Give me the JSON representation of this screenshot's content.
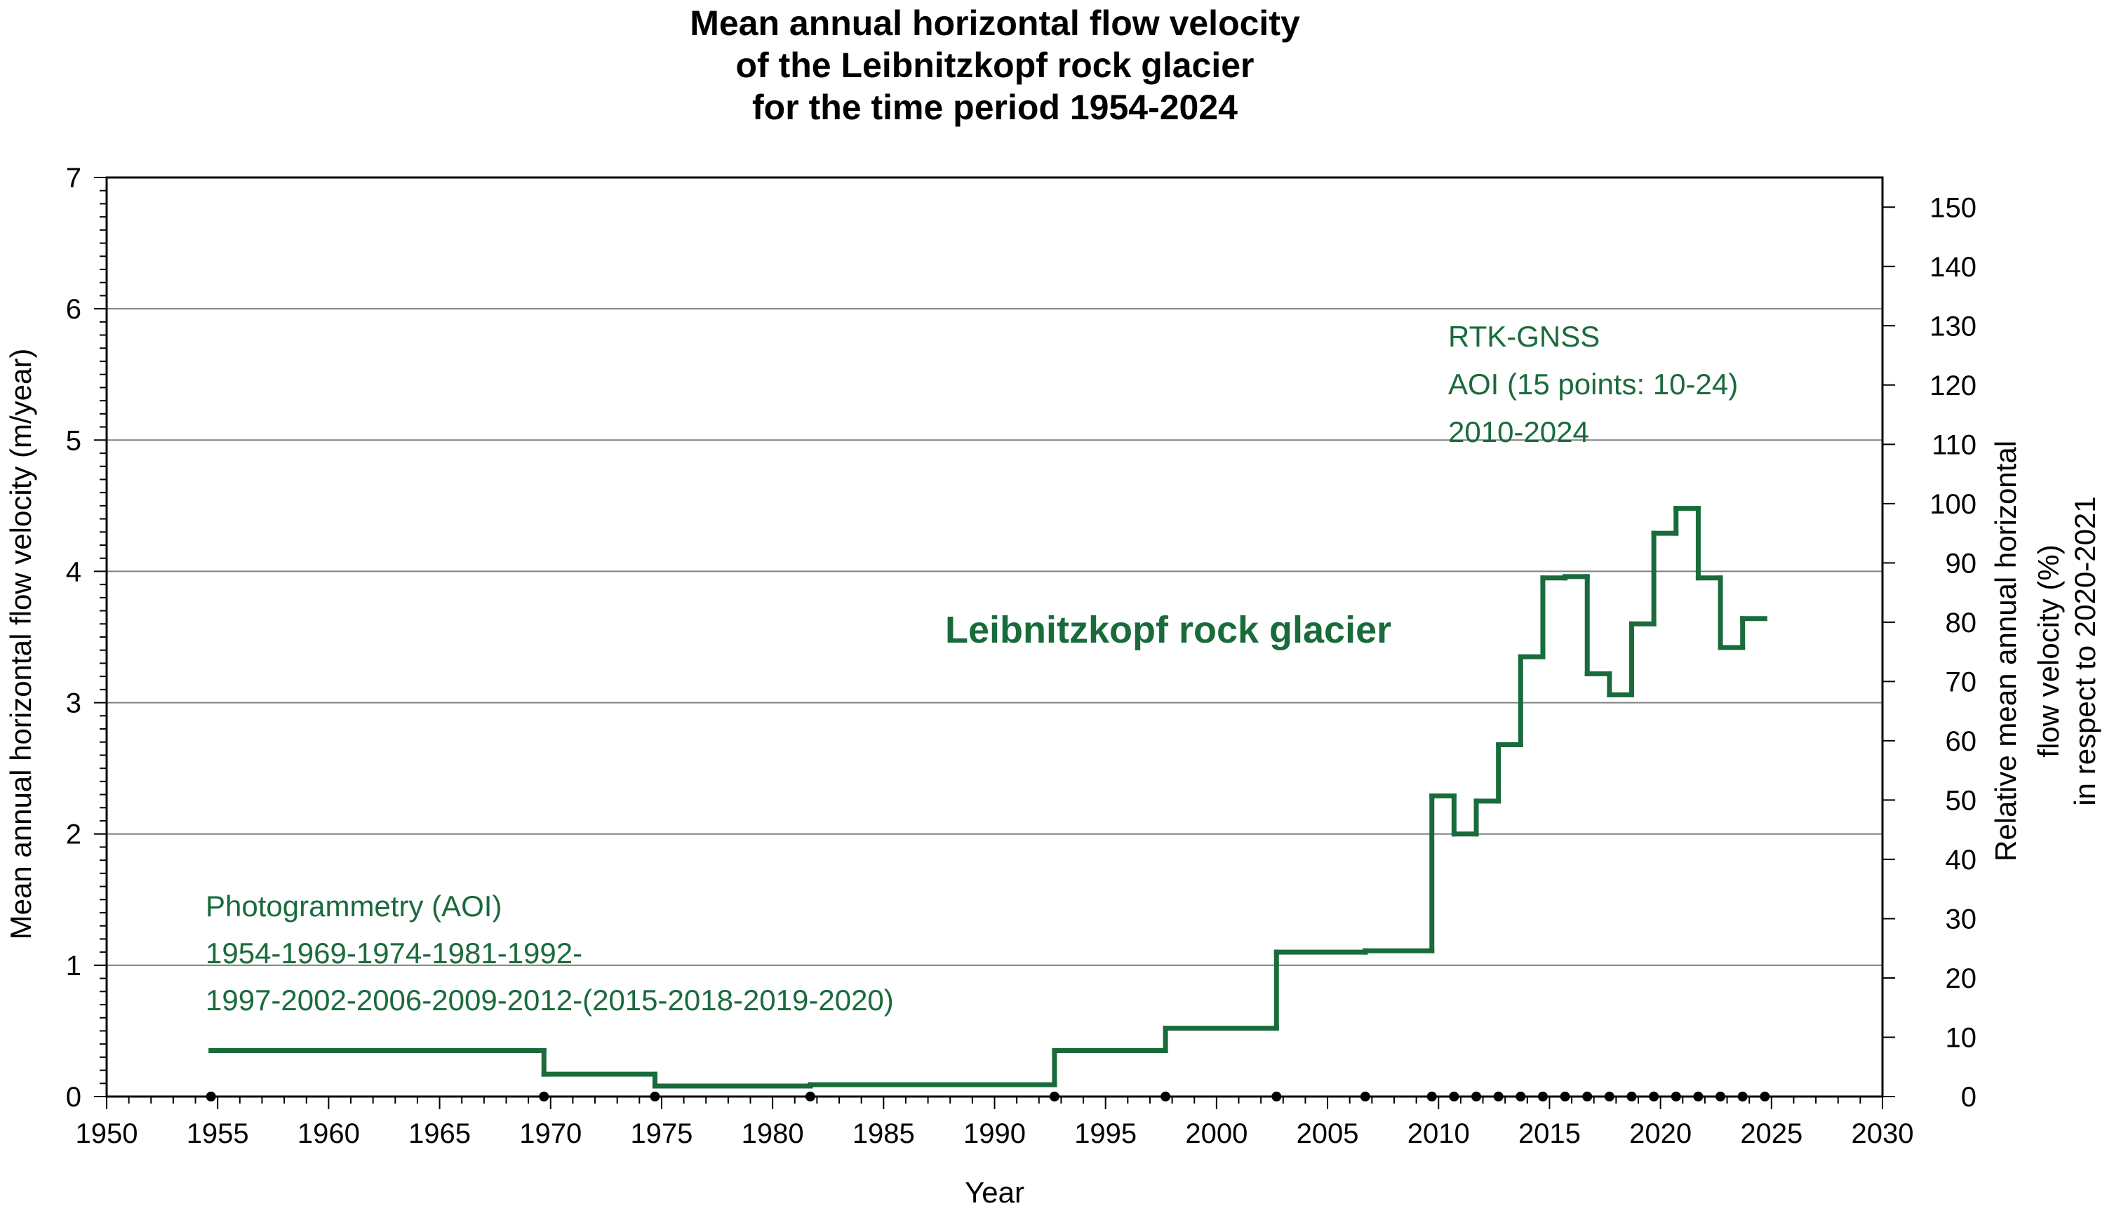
{
  "chart_data": {
    "type": "line",
    "step": true,
    "title": [
      "Mean annual horizontal flow velocity",
      "of the Leibnitzkopf rock glacier",
      "for the time period 1954-2024"
    ],
    "xlabel": "Year",
    "ylabel": "Mean annual horizontal flow velocity (m/year)",
    "y2label": [
      "Relative mean annual horizontal",
      "flow velocity (%)",
      "in respect to 2020-2021"
    ],
    "xlim": [
      1950,
      2030
    ],
    "ylim": [
      0,
      7
    ],
    "y2lim": [
      0,
      155
    ],
    "x_ticks": [
      1950,
      1955,
      1960,
      1965,
      1970,
      1975,
      1980,
      1985,
      1990,
      1995,
      2000,
      2005,
      2010,
      2015,
      2020,
      2025,
      2030
    ],
    "y_ticks": [
      0,
      1,
      2,
      3,
      4,
      5,
      6,
      7
    ],
    "y2_ticks": [
      0,
      10,
      20,
      30,
      40,
      50,
      60,
      70,
      80,
      90,
      100,
      110,
      120,
      130,
      140,
      150
    ],
    "grid": "horizontal",
    "line_color": "#1a6b3c",
    "series": [
      {
        "name": "Leibnitzkopf rock glacier",
        "segments": [
          {
            "x0": 1954.7,
            "x1": 1969.7,
            "y": 0.35
          },
          {
            "x0": 1969.7,
            "x1": 1974.7,
            "y": 0.17
          },
          {
            "x0": 1974.7,
            "x1": 1981.7,
            "y": 0.08
          },
          {
            "x0": 1981.7,
            "x1": 1992.7,
            "y": 0.09
          },
          {
            "x0": 1992.7,
            "x1": 1997.7,
            "y": 0.35
          },
          {
            "x0": 1997.7,
            "x1": 2002.7,
            "y": 0.52
          },
          {
            "x0": 2002.7,
            "x1": 2006.7,
            "y": 1.1
          },
          {
            "x0": 2006.7,
            "x1": 2009.7,
            "y": 1.11
          },
          {
            "x0": 2009.7,
            "x1": 2010.7,
            "y": 2.29
          },
          {
            "x0": 2010.7,
            "x1": 2011.7,
            "y": 2.0
          },
          {
            "x0": 2011.7,
            "x1": 2012.7,
            "y": 2.25
          },
          {
            "x0": 2012.7,
            "x1": 2013.7,
            "y": 2.68
          },
          {
            "x0": 2013.7,
            "x1": 2014.7,
            "y": 3.35
          },
          {
            "x0": 2014.7,
            "x1": 2015.7,
            "y": 3.95
          },
          {
            "x0": 2015.7,
            "x1": 2016.7,
            "y": 3.96
          },
          {
            "x0": 2016.7,
            "x1": 2017.7,
            "y": 3.22
          },
          {
            "x0": 2017.7,
            "x1": 2018.7,
            "y": 3.06
          },
          {
            "x0": 2018.7,
            "x1": 2019.7,
            "y": 3.6
          },
          {
            "x0": 2019.7,
            "x1": 2020.7,
            "y": 4.29
          },
          {
            "x0": 2020.7,
            "x1": 2021.7,
            "y": 4.48
          },
          {
            "x0": 2021.7,
            "x1": 2022.7,
            "y": 3.95
          },
          {
            "x0": 2022.7,
            "x1": 2023.7,
            "y": 3.42
          },
          {
            "x0": 2023.7,
            "x1": 2024.7,
            "y": 3.64
          }
        ]
      }
    ],
    "measurement_years": [
      1954.7,
      1969.7,
      1974.7,
      1981.7,
      1992.7,
      1997.7,
      2002.7,
      2006.7,
      2009.7,
      2010.7,
      2011.7,
      2012.7,
      2013.7,
      2014.7,
      2015.7,
      2016.7,
      2017.7,
      2018.7,
      2019.7,
      2020.7,
      2021.7,
      2022.7,
      2023.7,
      2024.7
    ],
    "annotations": {
      "series_label": "Leibnitzkopf rock glacier",
      "rtk_lines": [
        "RTK-GNSS",
        "AOI (15 points: 10-24)",
        "2010-2024"
      ],
      "photo_lines": [
        "Photogrammetry (AOI)",
        "1954-1969-1974-1981-1992-",
        "1997-2002-2006-2009-2012-(2015-2018-2019-2020)"
      ]
    }
  }
}
